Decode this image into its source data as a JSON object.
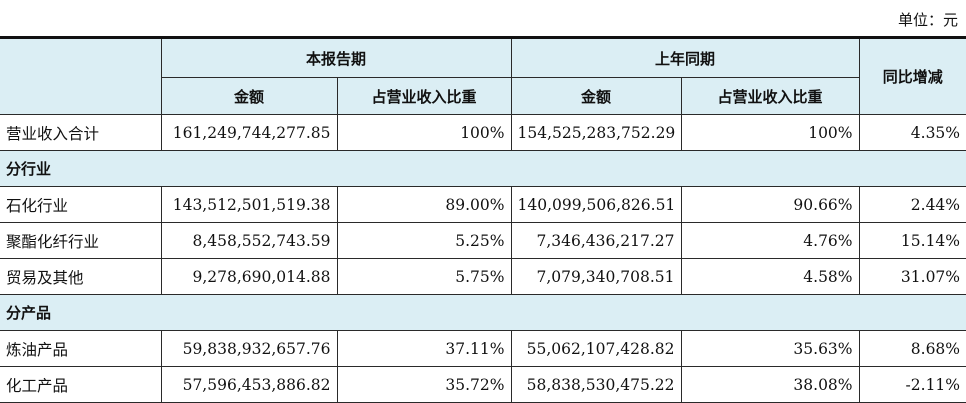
{
  "unit_label": "单位：元",
  "header": {
    "group_current": "本报告期",
    "group_prior": "上年同期",
    "yoy": "同比增减",
    "amount": "金额",
    "share": "占营业收入比重"
  },
  "total_row": {
    "label": "营业收入合计",
    "current_amount": "161,249,744,277.85",
    "current_share": "100%",
    "prior_amount": "154,525,283,752.29",
    "prior_share": "100%",
    "yoy": "4.35%"
  },
  "sections": [
    {
      "title": "分行业",
      "rows": [
        {
          "label": "石化行业",
          "current_amount": "143,512,501,519.38",
          "current_share": "89.00%",
          "prior_amount": "140,099,506,826.51",
          "prior_share": "90.66%",
          "yoy": "2.44%"
        },
        {
          "label": "聚酯化纤行业",
          "current_amount": "8,458,552,743.59",
          "current_share": "5.25%",
          "prior_amount": "7,346,436,217.27",
          "prior_share": "4.76%",
          "yoy": "15.14%"
        },
        {
          "label": "贸易及其他",
          "current_amount": "9,278,690,014.88",
          "current_share": "5.75%",
          "prior_amount": "7,079,340,708.51",
          "prior_share": "4.58%",
          "yoy": "31.07%"
        }
      ]
    },
    {
      "title": "分产品",
      "rows": [
        {
          "label": "炼油产品",
          "current_amount": "59,838,932,657.76",
          "current_share": "37.11%",
          "prior_amount": "55,062,107,428.82",
          "prior_share": "35.63%",
          "yoy": "8.68%"
        },
        {
          "label": "化工产品",
          "current_amount": "57,596,453,886.82",
          "current_share": "35.72%",
          "prior_amount": "58,838,530,475.22",
          "prior_share": "38.08%",
          "yoy": "-2.11%"
        }
      ]
    }
  ]
}
